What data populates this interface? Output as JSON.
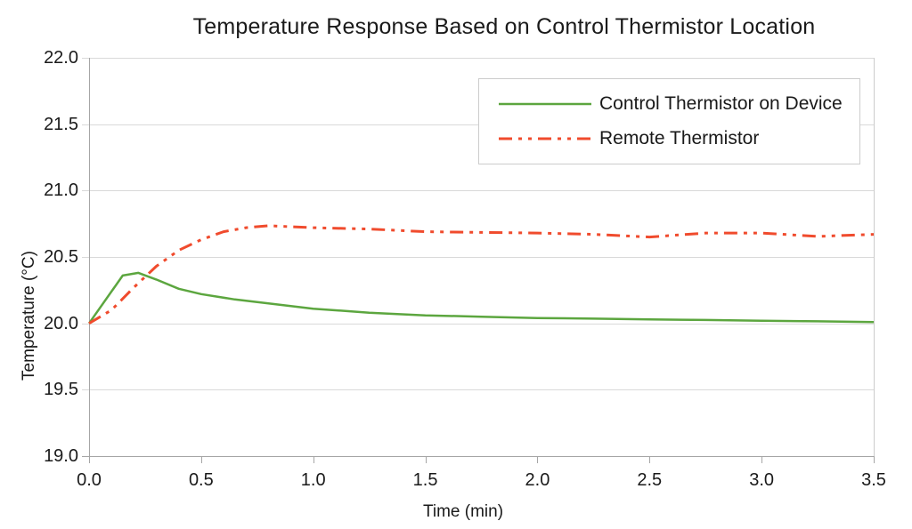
{
  "title": "Temperature Response Based on Control Thermistor Location",
  "chart_data": {
    "type": "line",
    "title": "Temperature Response Based on Control Thermistor Location",
    "xlabel": "Time (min)",
    "ylabel": "Temperature (°C)",
    "xlim": [
      0.0,
      3.5
    ],
    "ylim": [
      19.0,
      22.0
    ],
    "x_ticks": [
      "0.0",
      "0.5",
      "1.0",
      "1.5",
      "2.0",
      "2.5",
      "3.0",
      "3.5"
    ],
    "y_ticks": [
      "19.0",
      "19.5",
      "20.0",
      "20.5",
      "21.0",
      "21.5",
      "22.0"
    ],
    "grid": "horizontal-only",
    "legend_position": "top-right-inside",
    "colors": {
      "gridline": "#d9d9d9",
      "axis": "#a6a6a6",
      "right_border": "#cccccc",
      "text": "#1a1a1a"
    },
    "series": [
      {
        "name": "Control Thermistor on Device",
        "color": "#5ca63f",
        "line_style": "solid",
        "line_width": 2.5,
        "x": [
          0.0,
          0.15,
          0.22,
          0.3,
          0.4,
          0.5,
          0.65,
          0.8,
          1.0,
          1.25,
          1.5,
          1.75,
          2.0,
          2.25,
          2.5,
          2.75,
          3.0,
          3.25,
          3.5
        ],
        "y": [
          20.0,
          20.36,
          20.38,
          20.33,
          20.26,
          20.22,
          20.18,
          20.15,
          20.11,
          20.08,
          20.06,
          20.05,
          20.04,
          20.035,
          20.03,
          20.025,
          20.02,
          20.015,
          20.01
        ]
      },
      {
        "name": "Remote Thermistor",
        "color": "#f04b2d",
        "line_style": "dash-dot-dot",
        "line_width": 3,
        "x": [
          0.0,
          0.1,
          0.2,
          0.3,
          0.4,
          0.5,
          0.6,
          0.7,
          0.8,
          1.0,
          1.25,
          1.5,
          1.75,
          2.0,
          2.25,
          2.5,
          2.75,
          3.0,
          3.25,
          3.5
        ],
        "y": [
          20.0,
          20.1,
          20.27,
          20.43,
          20.55,
          20.63,
          20.69,
          20.72,
          20.735,
          20.72,
          20.71,
          20.69,
          20.685,
          20.68,
          20.67,
          20.65,
          20.68,
          20.68,
          20.655,
          20.67
        ]
      }
    ]
  }
}
